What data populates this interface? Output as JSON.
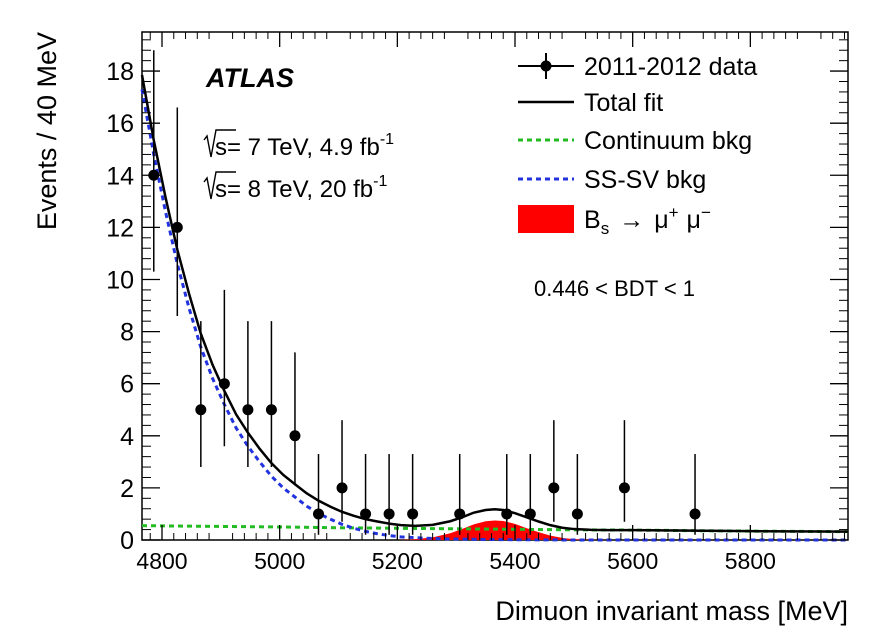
{
  "chart_data": {
    "type": "scatter",
    "title": "",
    "experiment": "ATLAS",
    "lumi_lines": [
      {
        "prefix": "s= 7 TeV, 4.9 fb",
        "sup": "-1"
      },
      {
        "prefix": "s= 8 TeV, 20 fb",
        "sup": "-1"
      }
    ],
    "selection": "0.446 < BDT < 1",
    "xlabel": "Dimuon invariant mass [MeV]",
    "ylabel": "Events / 40 MeV",
    "xlim": [
      4766,
      5966
    ],
    "ylim": [
      0,
      19.5
    ],
    "x_ticks": [
      4800,
      5000,
      5200,
      5400,
      5600,
      5800
    ],
    "y_ticks": [
      0,
      2,
      4,
      6,
      8,
      10,
      12,
      14,
      16,
      18
    ],
    "legend": {
      "position": "top-right",
      "entries": [
        {
          "key": "data",
          "label": "2011-2012 data"
        },
        {
          "key": "total",
          "label": "Total fit"
        },
        {
          "key": "continuum",
          "label": "Continuum bkg"
        },
        {
          "key": "sssv",
          "label": "SS-SV bkg"
        },
        {
          "key": "signal",
          "label_main": "B",
          "label_sub": "s",
          "label_arrow": "→",
          "label_mu1": "μ",
          "label_sup1": "+",
          "label_mu2": "μ",
          "label_sup2": "−"
        }
      ]
    },
    "colors": {
      "data": "#000000",
      "total": "#000000",
      "continuum": "#22bb22",
      "sssv": "#2233dd",
      "signal": "#ff0000"
    },
    "data_points": [
      {
        "x": 4786,
        "y": 14,
        "err_low": 3.7,
        "err_high": 4.8
      },
      {
        "x": 4826,
        "y": 12,
        "err_low": 3.4,
        "err_high": 4.6
      },
      {
        "x": 4866,
        "y": 5,
        "err_low": 2.2,
        "err_high": 3.4
      },
      {
        "x": 4906,
        "y": 6,
        "err_low": 2.4,
        "err_high": 3.6
      },
      {
        "x": 4946,
        "y": 5,
        "err_low": 2.2,
        "err_high": 3.4
      },
      {
        "x": 4986,
        "y": 5,
        "err_low": 2.2,
        "err_high": 3.4
      },
      {
        "x": 5026,
        "y": 4,
        "err_low": 1.9,
        "err_high": 3.2
      },
      {
        "x": 5066,
        "y": 1,
        "err_low": 0.8,
        "err_high": 2.3
      },
      {
        "x": 5106,
        "y": 2,
        "err_low": 1.3,
        "err_high": 2.6
      },
      {
        "x": 5146,
        "y": 1,
        "err_low": 0.8,
        "err_high": 2.3
      },
      {
        "x": 5186,
        "y": 1,
        "err_low": 0.8,
        "err_high": 2.3
      },
      {
        "x": 5226,
        "y": 1,
        "err_low": 0.8,
        "err_high": 2.3
      },
      {
        "x": 5306,
        "y": 1,
        "err_low": 0.8,
        "err_high": 2.3
      },
      {
        "x": 5386,
        "y": 1,
        "err_low": 0.8,
        "err_high": 2.3
      },
      {
        "x": 5426,
        "y": 1,
        "err_low": 0.8,
        "err_high": 2.3
      },
      {
        "x": 5466,
        "y": 2,
        "err_low": 1.3,
        "err_high": 2.6
      },
      {
        "x": 5506,
        "y": 1,
        "err_low": 0.8,
        "err_high": 2.3
      },
      {
        "x": 5586,
        "y": 2,
        "err_low": 1.3,
        "err_high": 2.6
      },
      {
        "x": 5706,
        "y": 1,
        "err_low": 0.8,
        "err_high": 2.3
      }
    ],
    "series": [
      {
        "name": "Continuum bkg",
        "x": [
          4766,
          4900,
          5000,
          5100,
          5200,
          5300,
          5400,
          5500,
          5600,
          5700,
          5800,
          5966
        ],
        "values": [
          0.55,
          0.52,
          0.5,
          0.47,
          0.45,
          0.43,
          0.41,
          0.39,
          0.38,
          0.36,
          0.34,
          0.32
        ]
      },
      {
        "name": "SS-SV bkg",
        "x": [
          4766,
          4786,
          4806,
          4826,
          4846,
          4866,
          4886,
          4906,
          4926,
          4946,
          4966,
          4986,
          5006,
          5026,
          5046,
          5066,
          5086,
          5106,
          5126,
          5146,
          5166,
          5186,
          5206,
          5246,
          5286,
          5346,
          5406,
          5500,
          5600,
          5966
        ],
        "values": [
          17.3,
          14.8,
          12.6,
          10.6,
          8.9,
          7.4,
          6.2,
          5.2,
          4.3,
          3.6,
          3.0,
          2.45,
          2.0,
          1.65,
          1.3,
          1.02,
          0.8,
          0.6,
          0.45,
          0.33,
          0.24,
          0.17,
          0.12,
          0.07,
          0.04,
          0.02,
          0.01,
          0.0,
          0.0,
          0.0
        ]
      },
      {
        "name": "Bs → μ+ μ− signal",
        "x": [
          5200,
          5230,
          5260,
          5290,
          5310,
          5330,
          5350,
          5366,
          5380,
          5400,
          5420,
          5440,
          5460,
          5480,
          5500,
          5530,
          5560
        ],
        "values": [
          0.0,
          0.03,
          0.1,
          0.26,
          0.42,
          0.6,
          0.72,
          0.75,
          0.73,
          0.62,
          0.45,
          0.3,
          0.17,
          0.08,
          0.03,
          0.01,
          0.0
        ]
      },
      {
        "name": "Total fit",
        "x": [
          4766,
          4786,
          4806,
          4826,
          4846,
          4866,
          4886,
          4906,
          4926,
          4946,
          4966,
          4986,
          5006,
          5026,
          5046,
          5066,
          5086,
          5106,
          5126,
          5146,
          5166,
          5186,
          5206,
          5230,
          5260,
          5290,
          5310,
          5330,
          5350,
          5366,
          5380,
          5400,
          5420,
          5440,
          5460,
          5480,
          5500,
          5530,
          5560,
          5600,
          5700,
          5800,
          5966
        ],
        "values": [
          17.85,
          15.35,
          13.15,
          11.15,
          9.45,
          7.92,
          6.72,
          5.72,
          4.82,
          4.12,
          3.5,
          2.95,
          2.5,
          2.14,
          1.79,
          1.51,
          1.28,
          1.08,
          0.93,
          0.8,
          0.71,
          0.63,
          0.57,
          0.54,
          0.58,
          0.72,
          0.87,
          1.05,
          1.15,
          1.18,
          1.15,
          1.03,
          0.87,
          0.71,
          0.57,
          0.47,
          0.42,
          0.39,
          0.38,
          0.38,
          0.36,
          0.34,
          0.32
        ]
      }
    ]
  }
}
